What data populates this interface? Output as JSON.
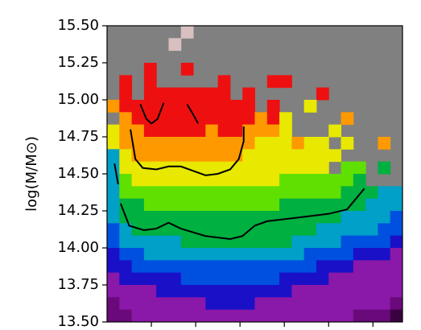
{
  "chart_data": {
    "type": "heatmap",
    "ylabel": "log(M/M⊙)",
    "xlim": [
      0,
      24
    ],
    "ylim": [
      13.5,
      15.5
    ],
    "yticks": [
      {
        "value": 13.5,
        "label": "13.50"
      },
      13.75,
      {
        "value": 14.0,
        "label": "14.00"
      },
      14.25,
      {
        "value": 14.5,
        "label": "14.50"
      },
      14.75,
      {
        "value": 15.0,
        "label": "15.00"
      },
      15.25,
      {
        "value": 15.5,
        "label": "15.50"
      }
    ],
    "xticks": [
      3.6,
      7.2,
      10.8,
      14.4,
      18,
      21.6
    ],
    "background": "#808080",
    "colormap": [
      "#3a0040",
      "#6a0a7a",
      "#8a18a8",
      "#1a10c8",
      "#0050e0",
      "#00a0c8",
      "#00b040",
      "#60e000",
      "#e8e800",
      "#ff9900",
      "#ee1010",
      "#d8c0c0"
    ],
    "z": [
      [
        null,
        null,
        null,
        null,
        null,
        null,
        11,
        null,
        null,
        null,
        null,
        null,
        null,
        null,
        null,
        null,
        null,
        null,
        null,
        null,
        null,
        null,
        null,
        null
      ],
      [
        null,
        null,
        null,
        null,
        null,
        11,
        null,
        null,
        null,
        null,
        null,
        null,
        null,
        null,
        null,
        null,
        null,
        null,
        null,
        null,
        null,
        null,
        null,
        null
      ],
      [
        null,
        null,
        null,
        null,
        null,
        null,
        null,
        null,
        null,
        null,
        null,
        null,
        null,
        null,
        null,
        null,
        null,
        null,
        null,
        null,
        null,
        null,
        null,
        null
      ],
      [
        null,
        null,
        null,
        10,
        null,
        null,
        10,
        null,
        null,
        null,
        null,
        null,
        null,
        null,
        null,
        null,
        null,
        null,
        null,
        null,
        null,
        null,
        null,
        null
      ],
      [
        null,
        10,
        null,
        10,
        null,
        null,
        null,
        null,
        null,
        10,
        null,
        null,
        null,
        10,
        10,
        null,
        null,
        null,
        null,
        null,
        null,
        null,
        null,
        null
      ],
      [
        null,
        10,
        null,
        10,
        10,
        10,
        10,
        10,
        10,
        10,
        null,
        10,
        null,
        null,
        null,
        null,
        null,
        10,
        null,
        null,
        null,
        null,
        null,
        null
      ],
      [
        9,
        10,
        10,
        10,
        10,
        10,
        10,
        10,
        10,
        10,
        10,
        10,
        null,
        10,
        null,
        null,
        8,
        null,
        null,
        null,
        null,
        null,
        null,
        null
      ],
      [
        null,
        9,
        10,
        10,
        10,
        10,
        10,
        10,
        10,
        10,
        10,
        10,
        9,
        10,
        8,
        null,
        null,
        null,
        null,
        9,
        null,
        null,
        null,
        null
      ],
      [
        8,
        9,
        9,
        10,
        10,
        10,
        10,
        10,
        9,
        10,
        10,
        9,
        9,
        9,
        8,
        null,
        null,
        null,
        8,
        null,
        null,
        null,
        null,
        null
      ],
      [
        8,
        9,
        9,
        9,
        9,
        9,
        9,
        9,
        9,
        9,
        9,
        9,
        8,
        8,
        8,
        9,
        8,
        8,
        null,
        8,
        null,
        null,
        9,
        null
      ],
      [
        5,
        8,
        9,
        9,
        9,
        9,
        9,
        9,
        9,
        9,
        9,
        8,
        8,
        8,
        8,
        8,
        8,
        8,
        8,
        null,
        null,
        null,
        null,
        null
      ],
      [
        5,
        8,
        8,
        8,
        8,
        8,
        8,
        8,
        8,
        8,
        8,
        8,
        8,
        8,
        8,
        8,
        8,
        8,
        null,
        7,
        7,
        null,
        6,
        null
      ],
      [
        5,
        7,
        8,
        8,
        8,
        8,
        8,
        8,
        8,
        8,
        8,
        8,
        8,
        8,
        7,
        7,
        7,
        7,
        7,
        7,
        6,
        null,
        null,
        null
      ],
      [
        5,
        7,
        7,
        7,
        7,
        7,
        7,
        7,
        7,
        7,
        7,
        7,
        7,
        7,
        7,
        7,
        7,
        7,
        7,
        6,
        6,
        6,
        5,
        5
      ],
      [
        5,
        6,
        6,
        7,
        7,
        7,
        7,
        7,
        7,
        7,
        7,
        7,
        7,
        7,
        6,
        6,
        6,
        6,
        6,
        6,
        6,
        5,
        5,
        5
      ],
      [
        5,
        6,
        6,
        6,
        6,
        6,
        6,
        6,
        6,
        6,
        6,
        6,
        6,
        6,
        6,
        6,
        6,
        6,
        6,
        5,
        5,
        5,
        5,
        4
      ],
      [
        4,
        5,
        6,
        6,
        6,
        6,
        6,
        6,
        6,
        6,
        6,
        6,
        6,
        6,
        6,
        6,
        6,
        5,
        5,
        5,
        5,
        5,
        4,
        4
      ],
      [
        4,
        5,
        5,
        5,
        5,
        5,
        6,
        6,
        6,
        6,
        6,
        6,
        6,
        6,
        6,
        5,
        5,
        5,
        5,
        4,
        4,
        4,
        4,
        3
      ],
      [
        3,
        4,
        4,
        5,
        5,
        5,
        5,
        5,
        5,
        5,
        5,
        5,
        5,
        5,
        5,
        5,
        4,
        4,
        4,
        4,
        3,
        3,
        3,
        2
      ],
      [
        3,
        3,
        4,
        4,
        4,
        4,
        4,
        4,
        4,
        4,
        4,
        4,
        4,
        4,
        4,
        4,
        4,
        3,
        3,
        3,
        2,
        2,
        2,
        2
      ],
      [
        2,
        3,
        3,
        3,
        3,
        3,
        4,
        4,
        4,
        4,
        4,
        4,
        4,
        4,
        3,
        3,
        3,
        3,
        2,
        2,
        2,
        2,
        2,
        2
      ],
      [
        2,
        2,
        2,
        2,
        3,
        3,
        3,
        3,
        3,
        3,
        3,
        3,
        3,
        3,
        3,
        2,
        2,
        2,
        2,
        2,
        2,
        2,
        2,
        2
      ],
      [
        1,
        2,
        2,
        2,
        2,
        2,
        2,
        2,
        3,
        3,
        3,
        3,
        2,
        2,
        2,
        2,
        2,
        2,
        2,
        2,
        2,
        2,
        2,
        1
      ],
      [
        1,
        1,
        2,
        2,
        2,
        2,
        2,
        2,
        2,
        2,
        2,
        2,
        2,
        2,
        2,
        2,
        2,
        2,
        2,
        2,
        1,
        1,
        1,
        0
      ]
    ],
    "contours": [
      {
        "color": "#000000",
        "x": [
          1.1,
          1.8,
          3,
          4,
          5,
          6,
          8,
          10,
          11,
          12,
          13,
          15,
          17,
          18,
          19.5,
          20.3,
          20.9
        ],
        "y": [
          14.3,
          14.15,
          14.12,
          14.13,
          14.17,
          14.13,
          14.08,
          14.06,
          14.08,
          14.15,
          14.18,
          14.2,
          14.22,
          14.23,
          14.26,
          14.34,
          14.4
        ]
      },
      {
        "color": "#000000",
        "x": [
          1.9,
          2.3,
          2.9,
          4,
          5,
          6,
          7,
          8,
          9,
          10,
          10.7,
          11.1,
          11.1
        ],
        "y": [
          14.8,
          14.6,
          14.54,
          14.53,
          14.55,
          14.55,
          14.52,
          14.49,
          14.5,
          14.53,
          14.6,
          14.72,
          14.82
        ]
      },
      {
        "color": "#000000",
        "x": [
          0.6,
          0.9
        ],
        "y": [
          14.57,
          14.43
        ]
      },
      {
        "color": "#000000",
        "x": [
          2.7,
          3.2,
          3.6,
          4.1,
          4.6
        ],
        "y": [
          14.97,
          14.87,
          14.84,
          14.87,
          14.98
        ]
      },
      {
        "color": "#000000",
        "x": [
          6.5,
          7,
          7.4
        ],
        "y": [
          14.97,
          14.9,
          14.84
        ]
      }
    ]
  }
}
